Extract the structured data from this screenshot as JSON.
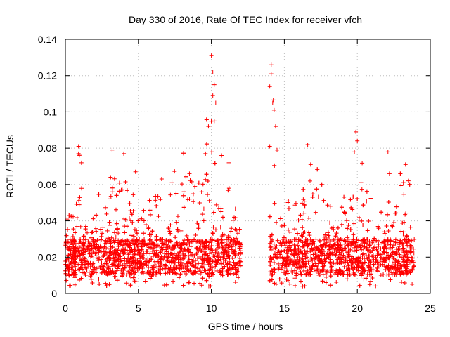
{
  "chart_data": {
    "type": "scatter",
    "title": "Day 330 of 2016, Rate Of TEC Index for receiver vfch",
    "xlabel": "GPS time / hours",
    "ylabel": "ROTI / TECUs",
    "xlim": [
      0,
      25
    ],
    "ylim": [
      0,
      0.14
    ],
    "x_ticks": [
      0,
      5,
      10,
      15,
      20,
      25
    ],
    "x_tick_labels": [
      "0",
      "5",
      "10",
      "15",
      "20",
      "25"
    ],
    "y_ticks": [
      0,
      0.02,
      0.04,
      0.06,
      0.08,
      0.1,
      0.12,
      0.14
    ],
    "y_tick_labels": [
      "0",
      "0.02",
      "0.04",
      "0.06",
      "0.08",
      "0.1",
      "0.12",
      "0.14"
    ],
    "grid": true,
    "marker": "+",
    "series_color": "#ff0000",
    "series": [
      {
        "name": "ROTI",
        "data_gap_hours": [
          12.0,
          14.0
        ],
        "core_band": [
          0.01,
          0.03
        ],
        "peaks": [
          {
            "x": 0.9,
            "y": 0.081
          },
          {
            "x": 0.9,
            "y": 0.077
          },
          {
            "x": 1.1,
            "y": 0.072
          },
          {
            "x": 3.2,
            "y": 0.079
          },
          {
            "x": 4.0,
            "y": 0.077
          },
          {
            "x": 3.1,
            "y": 0.064
          },
          {
            "x": 4.8,
            "y": 0.067
          },
          {
            "x": 7.3,
            "y": 0.061
          },
          {
            "x": 8.5,
            "y": 0.066
          },
          {
            "x": 9.6,
            "y": 0.077
          },
          {
            "x": 9.8,
            "y": 0.092
          },
          {
            "x": 10.0,
            "y": 0.131
          },
          {
            "x": 10.1,
            "y": 0.122
          },
          {
            "x": 10.2,
            "y": 0.115
          },
          {
            "x": 10.1,
            "y": 0.109
          },
          {
            "x": 10.3,
            "y": 0.105
          },
          {
            "x": 10.2,
            "y": 0.095
          },
          {
            "x": 10.7,
            "y": 0.076
          },
          {
            "x": 11.2,
            "y": 0.072
          },
          {
            "x": 14.1,
            "y": 0.126
          },
          {
            "x": 14.1,
            "y": 0.121
          },
          {
            "x": 14.0,
            "y": 0.114
          },
          {
            "x": 14.2,
            "y": 0.105
          },
          {
            "x": 14.3,
            "y": 0.101
          },
          {
            "x": 14.4,
            "y": 0.092
          },
          {
            "x": 14.0,
            "y": 0.081
          },
          {
            "x": 14.5,
            "y": 0.079
          },
          {
            "x": 16.6,
            "y": 0.082
          },
          {
            "x": 16.8,
            "y": 0.071
          },
          {
            "x": 19.9,
            "y": 0.089
          },
          {
            "x": 20.0,
            "y": 0.084
          },
          {
            "x": 19.8,
            "y": 0.078
          },
          {
            "x": 22.1,
            "y": 0.078
          },
          {
            "x": 22.2,
            "y": 0.066
          },
          {
            "x": 23.3,
            "y": 0.071
          },
          {
            "x": 23.5,
            "y": 0.062
          }
        ]
      }
    ]
  }
}
